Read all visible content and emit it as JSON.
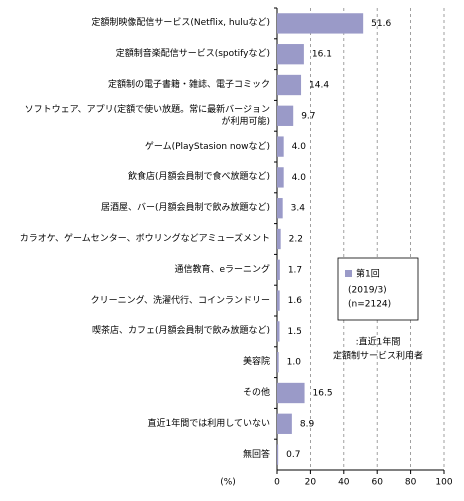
{
  "chart_data": {
    "type": "bar",
    "orientation": "horizontal",
    "categories": [
      "定額制映像配信サービス(Netflix, huluなど)",
      "定額制音楽配信サービス(spotifyなど)",
      "定額制の電子書籍・雑誌、電子コミック",
      "ソフトウェア、アプリ(定額で使い放題。常に最新バージョン\nが利用可能)",
      "ゲーム(PlayStasion nowなど)",
      "飲食店(月額会員制で食べ放題など)",
      "居酒屋、バー(月額会員制で飲み放題など)",
      "カラオケ、ゲームセンター、ボウリングなどアミューズメント",
      "通信教育、eラーニング",
      "クリーニング、洗濯代行、コインランドリー",
      "喫茶店、カフェ(月額会員制で飲み放題など)",
      "美容院",
      "その他",
      "直近1年間では利用していない",
      "無回答"
    ],
    "series": [
      {
        "name": "第1回",
        "color": "#9a9ac8",
        "values": [
          51.6,
          16.1,
          14.4,
          9.7,
          4.0,
          4.0,
          3.4,
          2.2,
          1.7,
          1.6,
          1.5,
          1.0,
          16.5,
          8.9,
          0.7
        ],
        "value_labels": [
          "51.6",
          "16.1",
          "14.4",
          "9.7",
          "4.0",
          "4.0",
          "3.4",
          "2.2",
          "1.7",
          "1.6",
          "1.5",
          "1.0",
          "16.5",
          "8.9",
          "0.7"
        ]
      }
    ],
    "legend_sublabels": [
      "(2019/3)",
      "(n=2124)"
    ],
    "annotation": [
      ":直近1年間",
      "定額制サービス利用者"
    ],
    "xlabel": "(%)",
    "xlim": [
      0,
      100
    ],
    "xticks": [
      0,
      20,
      40,
      60,
      80,
      100
    ],
    "grid": true
  }
}
